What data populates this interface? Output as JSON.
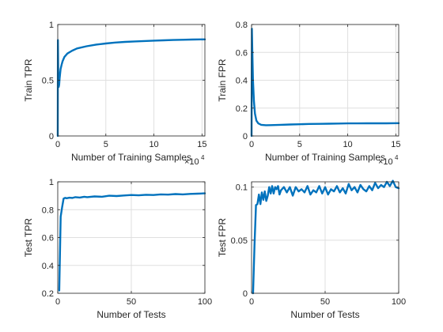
{
  "colors": {
    "line": "#0072BD",
    "axis": "#262626",
    "grid": "#dfdfdf",
    "background": "#ffffff"
  },
  "chart_data": [
    {
      "type": "line",
      "xlabel": "Number of Training Samples",
      "ylabel": "Train TPR",
      "x_exponent_label": "×10",
      "x_exponent_power": "4",
      "xlim": [
        0,
        15.3
      ],
      "ylim": [
        0,
        1
      ],
      "xticks": [
        0,
        5,
        10,
        15
      ],
      "yticks": [
        0,
        0.5,
        1
      ],
      "xtick_labels": [
        "0",
        "5",
        "10",
        "15"
      ],
      "ytick_labels": [
        "0",
        "0.5",
        "1"
      ],
      "grid": true,
      "series": [
        {
          "x": [
            0,
            0.02,
            0.05,
            0.1,
            0.15,
            0.2,
            0.25,
            0.3,
            0.4,
            0.5,
            0.7,
            1,
            1.5,
            2,
            3,
            4,
            5,
            6,
            7,
            8,
            9,
            10,
            11,
            12,
            13,
            14,
            15.3
          ],
          "values": [
            0,
            0.86,
            0.6,
            0.44,
            0.46,
            0.52,
            0.56,
            0.6,
            0.64,
            0.67,
            0.71,
            0.74,
            0.765,
            0.785,
            0.805,
            0.82,
            0.83,
            0.838,
            0.844,
            0.848,
            0.852,
            0.855,
            0.858,
            0.861,
            0.863,
            0.865,
            0.867
          ]
        }
      ]
    },
    {
      "type": "line",
      "xlabel": "Number of Training Samples",
      "ylabel": "Train FPR",
      "x_exponent_label": "×10",
      "x_exponent_power": "4",
      "xlim": [
        0,
        15.3
      ],
      "ylim": [
        0,
        0.8
      ],
      "xticks": [
        0,
        5,
        10,
        15
      ],
      "yticks": [
        0,
        0.2,
        0.4,
        0.6,
        0.8
      ],
      "xtick_labels": [
        "0",
        "5",
        "10",
        "15"
      ],
      "ytick_labels": [
        "0",
        "0.2",
        "0.4",
        "0.6",
        "0.8"
      ],
      "grid": true,
      "series": [
        {
          "x": [
            0,
            0.03,
            0.08,
            0.15,
            0.25,
            0.35,
            0.5,
            0.7,
            1,
            1.5,
            2,
            3,
            4,
            5,
            6,
            7,
            8,
            9,
            10,
            11,
            12,
            13,
            14,
            15.3
          ],
          "values": [
            0,
            0.77,
            0.6,
            0.4,
            0.25,
            0.16,
            0.11,
            0.09,
            0.08,
            0.077,
            0.078,
            0.08,
            0.082,
            0.084,
            0.086,
            0.087,
            0.088,
            0.089,
            0.09,
            0.09,
            0.091,
            0.091,
            0.091,
            0.092
          ]
        }
      ]
    },
    {
      "type": "line",
      "xlabel": "Number of Tests",
      "ylabel": "Test TPR",
      "xlim": [
        0,
        100
      ],
      "ylim": [
        0.2,
        1
      ],
      "xticks": [
        0,
        50,
        100
      ],
      "yticks": [
        0.2,
        0.4,
        0.6,
        0.8,
        1
      ],
      "xtick_labels": [
        "0",
        "50",
        "100"
      ],
      "ytick_labels": [
        "0.2",
        "0.4",
        "0.6",
        "0.8",
        "1"
      ],
      "grid": true,
      "series": [
        {
          "x": [
            1,
            2,
            3,
            4,
            5,
            6,
            8,
            10,
            12,
            15,
            18,
            20,
            25,
            30,
            35,
            40,
            45,
            50,
            55,
            60,
            65,
            70,
            75,
            80,
            85,
            90,
            95,
            100
          ],
          "values": [
            0.22,
            0.75,
            0.82,
            0.88,
            0.885,
            0.882,
            0.886,
            0.884,
            0.89,
            0.887,
            0.893,
            0.89,
            0.895,
            0.893,
            0.9,
            0.898,
            0.902,
            0.905,
            0.903,
            0.907,
            0.905,
            0.91,
            0.908,
            0.912,
            0.91,
            0.913,
            0.915,
            0.917
          ]
        }
      ]
    },
    {
      "type": "line",
      "xlabel": "Number of Tests",
      "ylabel": "Test FPR",
      "xlim": [
        0,
        100
      ],
      "ylim": [
        0,
        0.105
      ],
      "xticks": [
        0,
        50,
        100
      ],
      "yticks": [
        0,
        0.05,
        0.1
      ],
      "xtick_labels": [
        "0",
        "50",
        "100"
      ],
      "ytick_labels": [
        "0",
        "0.05",
        "0.1"
      ],
      "grid": true,
      "series": [
        {
          "x": [
            1,
            2,
            3,
            4,
            5,
            6,
            7,
            8,
            9,
            10,
            11,
            12,
            13,
            14,
            15,
            16,
            17,
            18,
            19,
            20,
            22,
            24,
            26,
            28,
            30,
            32,
            34,
            36,
            38,
            40,
            42,
            44,
            46,
            48,
            50,
            52,
            54,
            56,
            58,
            60,
            62,
            64,
            66,
            68,
            70,
            72,
            74,
            76,
            78,
            80,
            82,
            84,
            86,
            88,
            90,
            92,
            94,
            96,
            98,
            100
          ],
          "values": [
            0,
            0.045,
            0.083,
            0.084,
            0.093,
            0.084,
            0.095,
            0.088,
            0.096,
            0.087,
            0.092,
            0.1,
            0.094,
            0.101,
            0.094,
            0.1,
            0.098,
            0.101,
            0.093,
            0.097,
            0.1,
            0.095,
            0.1,
            0.092,
            0.1,
            0.096,
            0.098,
            0.095,
            0.101,
            0.093,
            0.097,
            0.095,
            0.101,
            0.094,
            0.1,
            0.093,
            0.098,
            0.096,
            0.101,
            0.095,
            0.099,
            0.094,
            0.103,
            0.097,
            0.1,
            0.095,
            0.102,
            0.098,
            0.096,
            0.101,
            0.097,
            0.104,
            0.099,
            0.102,
            0.1,
            0.105,
            0.101,
            0.106,
            0.1,
            0.099
          ]
        }
      ]
    }
  ]
}
